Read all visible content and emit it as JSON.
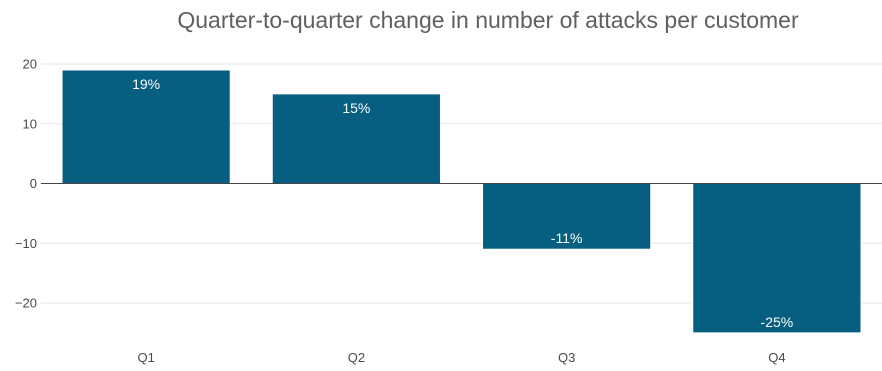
{
  "chart_data": {
    "type": "bar",
    "title": "Quarter-to-quarter change in number of attacks per customer",
    "xlabel": "",
    "ylabel": "",
    "categories": [
      "Q1",
      "Q2",
      "Q3",
      "Q4"
    ],
    "values": [
      19,
      15,
      -11,
      -25
    ],
    "data_labels": [
      "19%",
      "15%",
      "-11%",
      "-25%"
    ],
    "yticks": [
      20,
      10,
      0,
      -10,
      -20
    ],
    "ytick_labels": [
      "20",
      "10",
      "0",
      "−10",
      "−20"
    ],
    "ylim": [
      -27,
      22
    ],
    "grid": true,
    "legend": "none",
    "bar_color": "#065e81"
  }
}
